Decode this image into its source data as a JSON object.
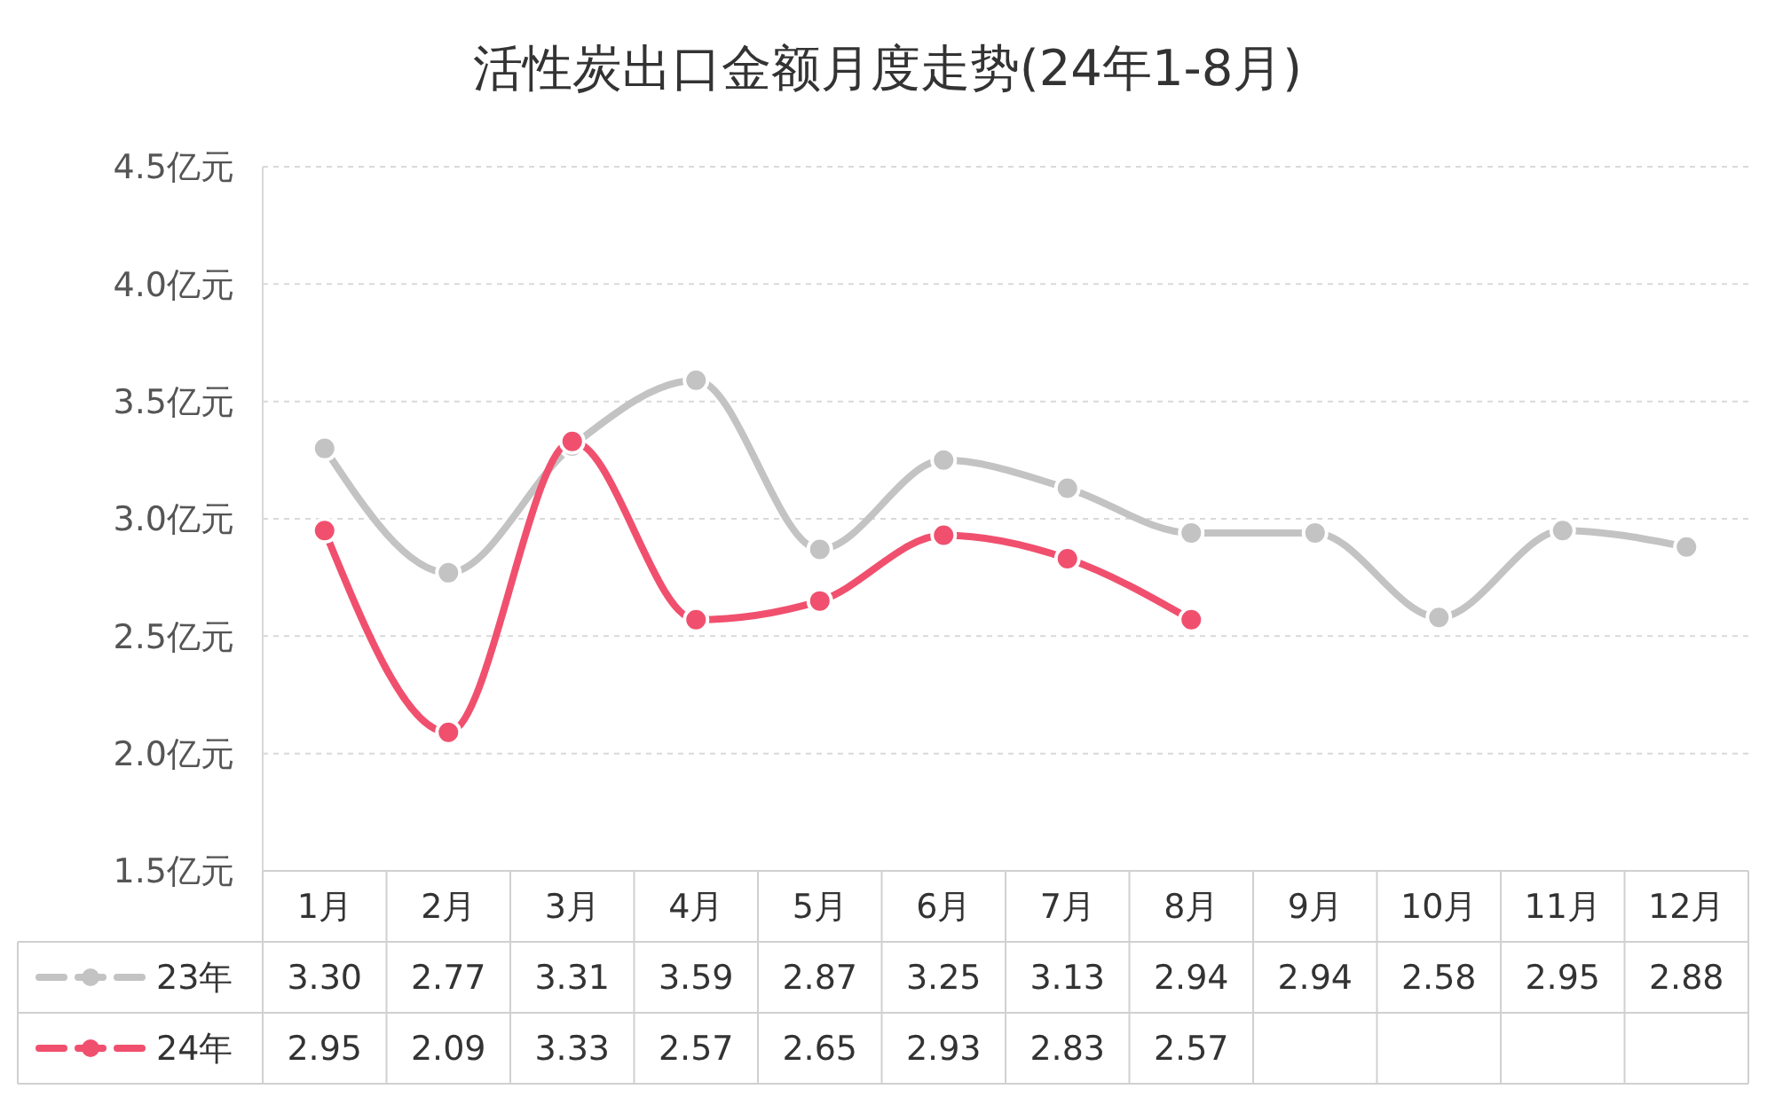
{
  "chart_data": {
    "type": "line",
    "title": "活性炭出口金额月度走势(24年1-8月)",
    "categories": [
      "1月",
      "2月",
      "3月",
      "4月",
      "5月",
      "6月",
      "7月",
      "8月",
      "9月",
      "10月",
      "11月",
      "12月"
    ],
    "series": [
      {
        "name": "23年",
        "color": "#c3c3c3",
        "values": [
          3.3,
          2.77,
          3.31,
          3.59,
          2.87,
          3.25,
          3.13,
          2.94,
          2.94,
          2.58,
          2.95,
          2.88
        ],
        "value_labels": [
          "3.30",
          "2.77",
          "3.31",
          "3.59",
          "2.87",
          "3.25",
          "3.13",
          "2.94",
          "2.94",
          "2.58",
          "2.95",
          "2.88"
        ]
      },
      {
        "name": "24年",
        "color": "#f0506e",
        "values": [
          2.95,
          2.09,
          3.33,
          2.57,
          2.65,
          2.93,
          2.83,
          2.57,
          null,
          null,
          null,
          null
        ],
        "value_labels": [
          "2.95",
          "2.09",
          "3.33",
          "2.57",
          "2.65",
          "2.93",
          "2.83",
          "2.57",
          null,
          null,
          null,
          null
        ]
      }
    ],
    "ylim": [
      1.5,
      4.5
    ],
    "yticks": [
      {
        "value": 1.5,
        "label": "1.5亿元"
      },
      {
        "value": 2.0,
        "label": "2.0亿元"
      },
      {
        "value": 2.5,
        "label": "2.5亿元"
      },
      {
        "value": 3.0,
        "label": "3.0亿元"
      },
      {
        "value": 3.5,
        "label": "3.5亿元"
      },
      {
        "value": 4.0,
        "label": "4.0亿元"
      },
      {
        "value": 4.5,
        "label": "4.5亿元"
      }
    ],
    "grid": "y",
    "legend": "bottom",
    "marker": "circle",
    "line_style": "solid"
  }
}
